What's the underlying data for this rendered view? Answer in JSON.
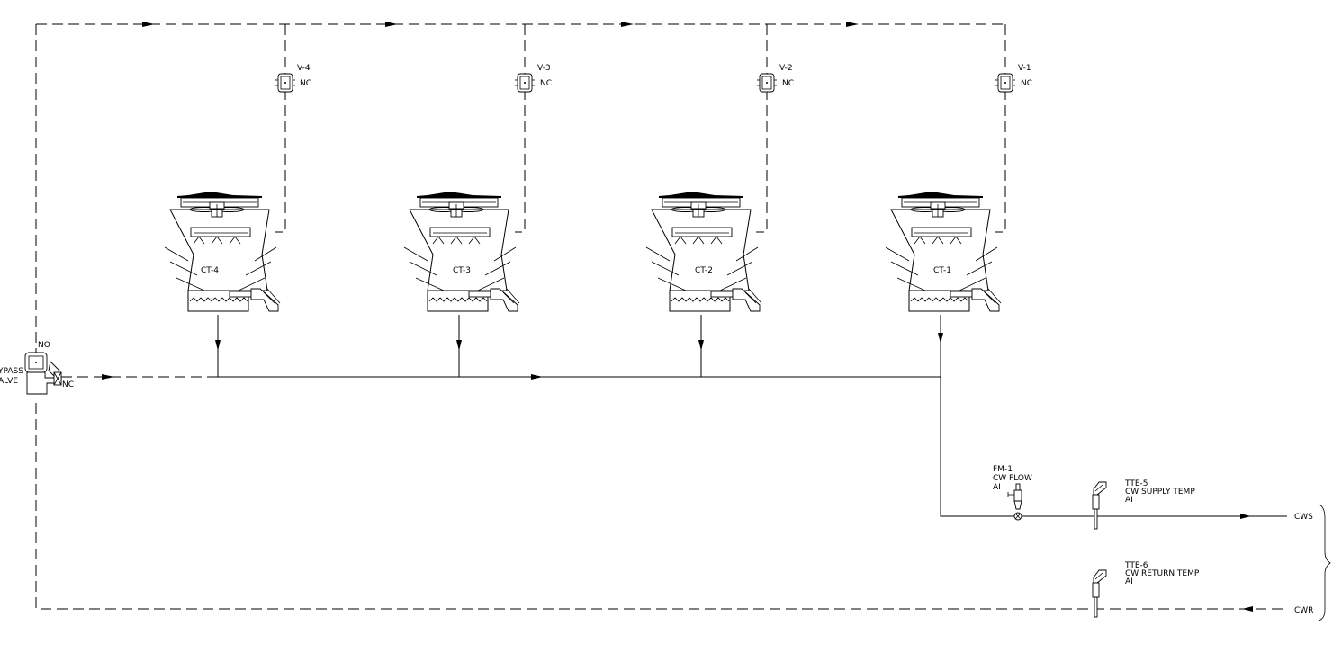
{
  "towers": [
    {
      "label": "CT-4",
      "valve": "V-4",
      "valve_state": "NC"
    },
    {
      "label": "CT-3",
      "valve": "V-3",
      "valve_state": "NC"
    },
    {
      "label": "CT-2",
      "valve": "V-2",
      "valve_state": "NC"
    },
    {
      "label": "CT-1",
      "valve": "V-1",
      "valve_state": "NC"
    }
  ],
  "bypass": {
    "line1": "YPASS",
    "line2": "ALVE",
    "state_top": "NO",
    "state_side": "NC"
  },
  "flow_meter": {
    "tag": "FM-1",
    "desc": "CW FLOW",
    "signal": "AI"
  },
  "supply_temp": {
    "tag": "TTE-5",
    "desc": "CW SUPPLY TEMP",
    "signal": "AI"
  },
  "return_temp": {
    "tag": "TTE-6",
    "desc": "CW RETURN TEMP",
    "signal": "AI"
  },
  "lines": {
    "supply": "CWS",
    "return": "CWR"
  }
}
